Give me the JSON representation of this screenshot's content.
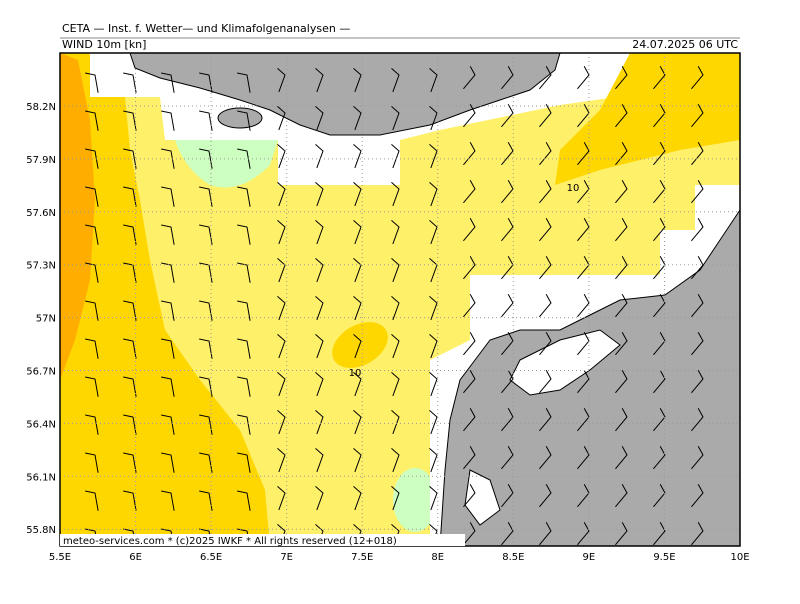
{
  "header": {
    "title": "CETA — Inst. f. Wetter— und Klimafolgenanalysen —",
    "field": "WIND 10m [kn]",
    "time": "24.07.2025 06 UTC"
  },
  "axes": {
    "x_labels": [
      "5.5E",
      "6E",
      "6.5E",
      "7E",
      "7.5E",
      "8E",
      "8.5E",
      "9E",
      "9.5E",
      "10E"
    ],
    "y_labels": [
      "58.2N",
      "57.9N",
      "57.6N",
      "57.3N",
      "57N",
      "56.7N",
      "56.4N",
      "56.1N",
      "55.8N"
    ]
  },
  "contour_labels": [
    "10",
    "10"
  ],
  "footer": "meteo-services.com * (c)2025 IWKF * All rights reserved (12+018)"
}
